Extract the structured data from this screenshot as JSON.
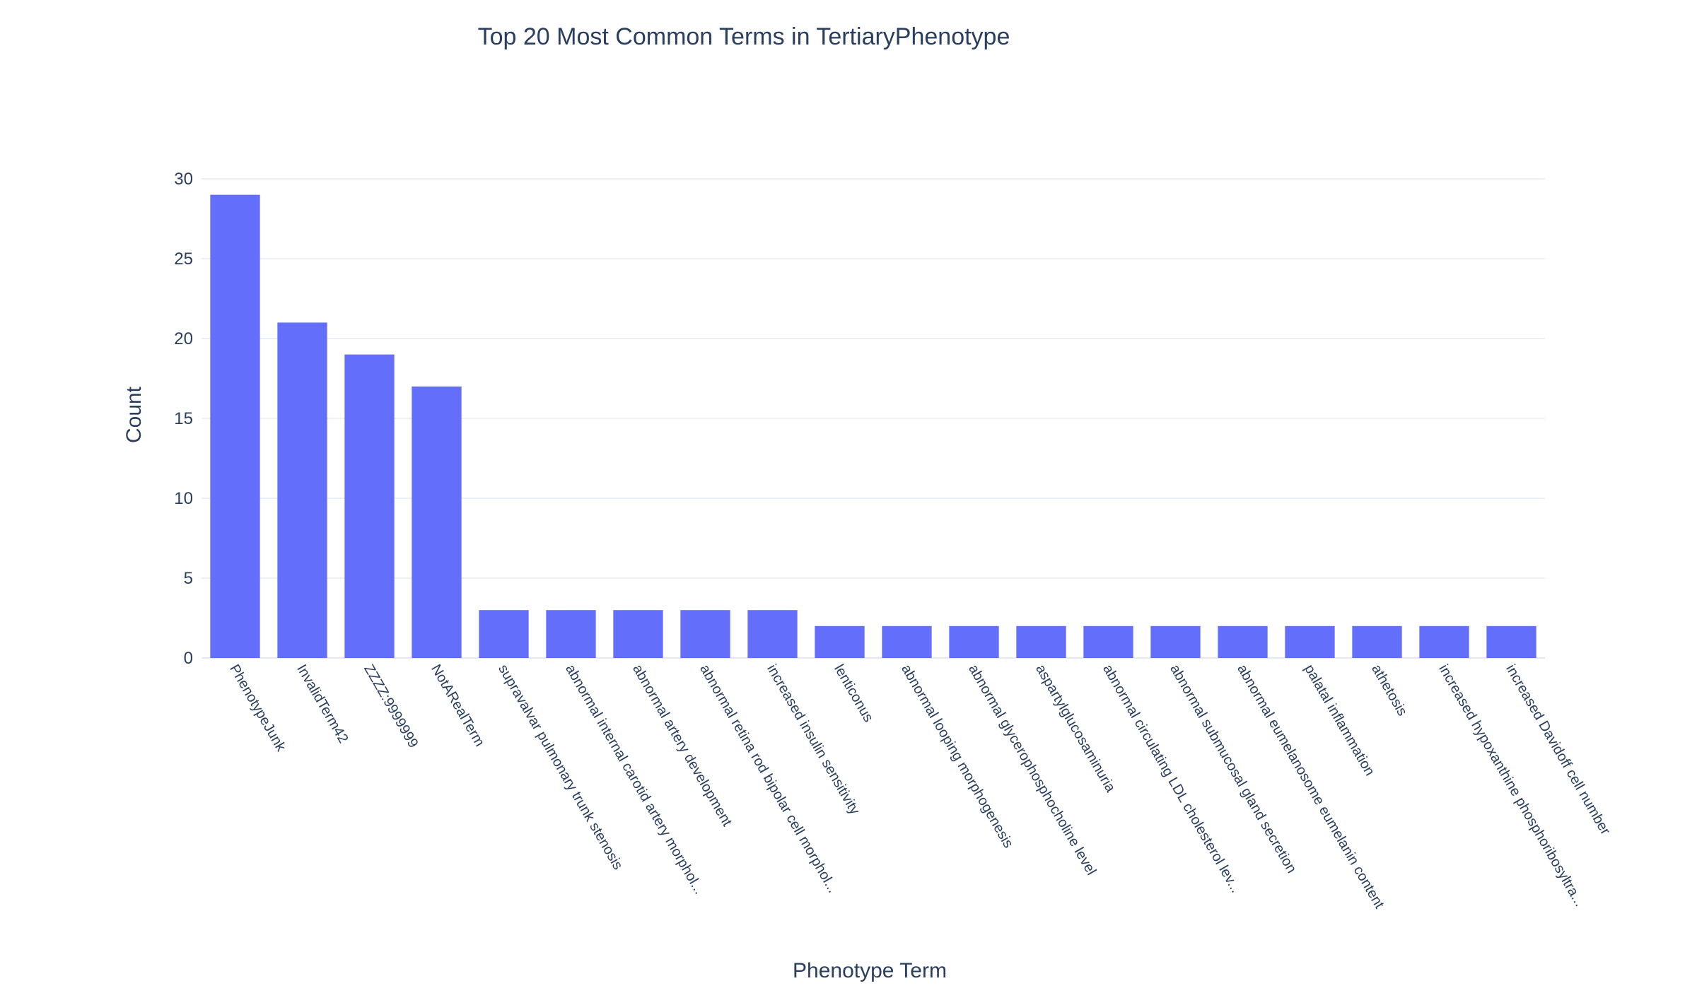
{
  "chart_data": {
    "type": "bar",
    "title": "Top 20 Most Common Terms in TertiaryPhenotype",
    "xlabel": "Phenotype Term",
    "ylabel": "Count",
    "ylim": [
      0,
      30
    ],
    "yticks": [
      0,
      5,
      10,
      15,
      20,
      25,
      30
    ],
    "grid": true,
    "bar_color": "#636efa",
    "categories": [
      "PhenotypeJunk",
      "InvalidTerm42",
      "ZZZZ:9999999",
      "NotARealTerm",
      "supravalvar pulmonary trunk stenosis",
      "abnormal internal carotid artery morphol...",
      "abnormal artery development",
      "abnormal retina rod bipolar cell morphol...",
      "increased insulin sensitivity",
      "lenticonus",
      "abnormal looping morphogenesis",
      "abnormal glycerophosphocholine level",
      "aspartylglucosaminuria",
      "abnormal circulating LDL cholesterol lev...",
      "abnormal submucosal gland secretion",
      "abnormal eumelanosome eumelanin content",
      "palatal inflammation",
      "athetosis",
      "increased hypoxanthine phosphoribosyltra...",
      "increased Davidoff cell number"
    ],
    "values": [
      29,
      21,
      19,
      17,
      3,
      3,
      3,
      3,
      3,
      2,
      2,
      2,
      2,
      2,
      2,
      2,
      2,
      2,
      2,
      2
    ]
  }
}
